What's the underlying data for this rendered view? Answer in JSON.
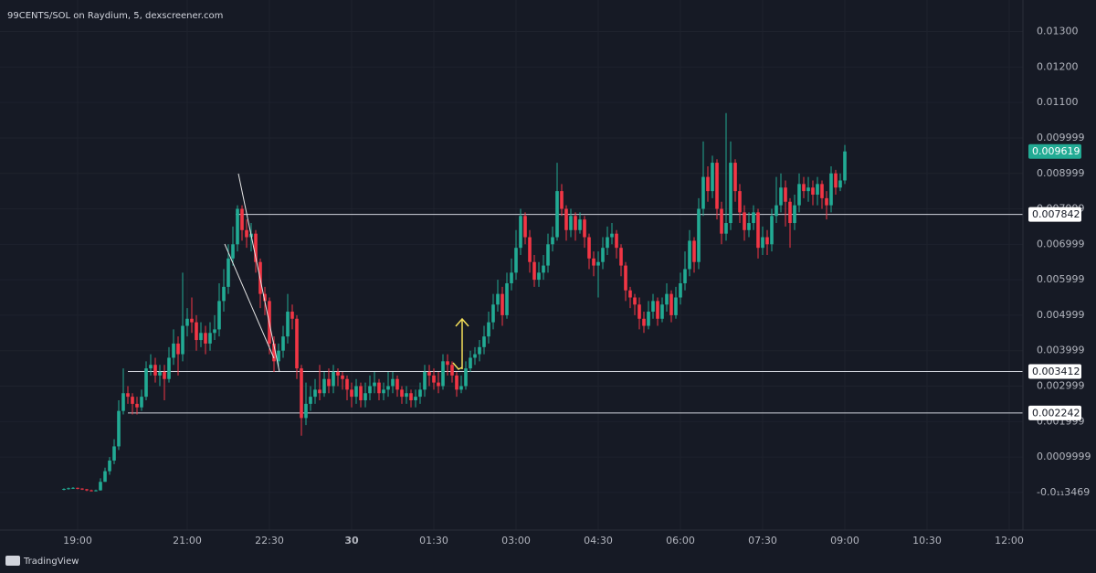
{
  "chart_data": {
    "type": "candlestick",
    "title": "99CENTS/SOL on Raydium, 5, dexscreener.com",
    "up_color": "#22ab94",
    "down_color": "#f23645",
    "grid": true,
    "xlim": [
      -85,
      1035
    ],
    "xticks": [
      {
        "value": 0,
        "label": "19:00"
      },
      {
        "value": 120,
        "label": "21:00"
      },
      {
        "value": 210,
        "label": "22:30"
      },
      {
        "value": 300,
        "label": "30"
      },
      {
        "value": 390,
        "label": "01:30"
      },
      {
        "value": 480,
        "label": "03:00"
      },
      {
        "value": 570,
        "label": "04:30"
      },
      {
        "value": 660,
        "label": "06:00"
      },
      {
        "value": 750,
        "label": "07:30"
      },
      {
        "value": 840,
        "label": "09:00"
      },
      {
        "value": 930,
        "label": "10:30"
      },
      {
        "value": 1020,
        "label": "12:00"
      }
    ],
    "ylim": [
      -0.00106,
      0.01389
    ],
    "yticks": [
      {
        "value": 0.013,
        "label": "0.01300"
      },
      {
        "value": 0.012,
        "label": "0.01200"
      },
      {
        "value": 0.011,
        "label": "0.01100"
      },
      0.009999,
      0.008999,
      0.007999,
      0.006999,
      0.005999,
      0.004999,
      0.003999,
      0.002999,
      0.001999,
      0.0009999,
      {
        "value": -3.469e-13,
        "label": "-0.0₁₁3469"
      }
    ],
    "price_lines": [
      0.007842,
      0.003412,
      0.002242
    ],
    "x": [
      -15,
      -10,
      -5,
      0,
      5,
      10,
      15,
      20,
      25,
      30,
      35,
      40,
      45,
      50,
      55,
      60,
      65,
      70,
      75,
      80,
      85,
      90,
      95,
      100,
      105,
      110,
      115,
      120,
      125,
      130,
      135,
      140,
      145,
      150,
      155,
      160,
      165,
      170,
      175,
      180,
      185,
      190,
      195,
      200,
      205,
      210,
      215,
      220,
      225,
      230,
      235,
      240,
      245,
      250,
      255,
      260,
      265,
      270,
      275,
      280,
      285,
      290,
      295,
      300,
      305,
      310,
      315,
      320,
      325,
      330,
      335,
      340,
      345,
      350,
      355,
      360,
      365,
      370,
      375,
      380,
      385,
      390,
      395,
      400,
      405,
      410,
      415,
      420,
      425,
      430,
      435,
      440,
      445,
      450,
      455,
      460,
      465,
      470,
      475,
      480,
      485,
      490,
      495,
      500,
      505,
      510,
      515,
      520,
      525,
      530,
      535,
      540,
      545,
      550,
      555,
      560,
      565,
      570,
      575,
      580,
      585,
      590,
      595,
      600,
      605,
      610,
      615,
      620,
      625,
      630,
      635,
      640,
      645,
      650,
      655,
      660,
      665,
      670,
      675,
      680,
      685,
      690,
      695,
      700,
      705,
      710,
      715,
      720,
      725,
      730,
      735,
      740,
      745,
      750,
      755,
      760,
      765,
      770,
      775,
      780,
      785,
      790,
      795,
      800,
      805,
      810,
      815,
      820,
      825,
      830,
      835,
      840
    ],
    "open": [
      8e-05,
      0.0001,
      0.00012,
      0.00013,
      0.00011,
      9e-05,
      6e-05,
      5e-05,
      6e-05,
      0.0003,
      0.0006,
      0.0009,
      0.0013,
      0.0023,
      0.0028,
      0.0027,
      0.0025,
      0.0024,
      0.0027,
      0.0035,
      0.0036,
      0.0033,
      0.0034,
      0.0032,
      0.0038,
      0.0042,
      0.0039,
      0.0047,
      0.0049,
      0.0048,
      0.0043,
      0.0045,
      0.0042,
      0.0045,
      0.0046,
      0.0054,
      0.0058,
      0.0066,
      0.007,
      0.008,
      0.0074,
      0.0072,
      0.0073,
      0.0065,
      0.0056,
      0.0054,
      0.0042,
      0.0037,
      0.004,
      0.0044,
      0.0051,
      0.0049,
      0.0035,
      0.0021,
      0.0025,
      0.0027,
      0.0029,
      0.0028,
      0.0032,
      0.003,
      0.0034,
      0.0033,
      0.0032,
      0.0029,
      0.0027,
      0.003,
      0.0026,
      0.0028,
      0.003,
      0.0031,
      0.0028,
      0.0029,
      0.003,
      0.0032,
      0.0029,
      0.0027,
      0.0028,
      0.0026,
      0.0027,
      0.0029,
      0.0034,
      0.0033,
      0.0031,
      0.003,
      0.0037,
      0.0036,
      0.0033,
      0.0029,
      0.003,
      0.0035,
      0.0038,
      0.0039,
      0.0041,
      0.0044,
      0.0048,
      0.0053,
      0.0056,
      0.005,
      0.0059,
      0.0062,
      0.0069,
      0.0078,
      0.0072,
      0.0065,
      0.006,
      0.0062,
      0.0064,
      0.007,
      0.0072,
      0.0085,
      0.008,
      0.0074,
      0.0078,
      0.0074,
      0.0077,
      0.0072,
      0.0066,
      0.0064,
      0.0065,
      0.0069,
      0.0072,
      0.0073,
      0.0069,
      0.0064,
      0.0057,
      0.0055,
      0.0053,
      0.0049,
      0.0047,
      0.0051,
      0.0054,
      0.0049,
      0.0053,
      0.0056,
      0.005,
      0.0055,
      0.0059,
      0.0063,
      0.0071,
      0.0065,
      0.008,
      0.0089,
      0.0085,
      0.0093,
      0.008,
      0.0073,
      0.0076,
      0.0093,
      0.0085,
      0.0079,
      0.0074,
      0.0076,
      0.0079,
      0.0069,
      0.0072,
      0.007,
      0.0078,
      0.0081,
      0.0086,
      0.0082,
      0.0076,
      0.0081,
      0.0087,
      0.0085,
      0.0086,
      0.0084,
      0.0087,
      0.0083,
      0.0081,
      0.009,
      0.0086,
      0.0088
    ],
    "high": [
      0.00012,
      0.00014,
      0.00015,
      0.00014,
      0.00012,
      0.0001,
      8e-05,
      8e-05,
      0.0004,
      0.0007,
      0.001,
      0.0015,
      0.0026,
      0.0035,
      0.003,
      0.0028,
      0.0027,
      0.0029,
      0.0037,
      0.0039,
      0.0038,
      0.0036,
      0.0036,
      0.0041,
      0.0046,
      0.0044,
      0.0062,
      0.0052,
      0.0055,
      0.005,
      0.0048,
      0.0047,
      0.0048,
      0.005,
      0.0059,
      0.0063,
      0.007,
      0.0075,
      0.0081,
      0.0081,
      0.0077,
      0.0076,
      0.0074,
      0.0066,
      0.0058,
      0.0055,
      0.0044,
      0.0042,
      0.0047,
      0.0056,
      0.0053,
      0.005,
      0.0036,
      0.0031,
      0.003,
      0.0032,
      0.0036,
      0.0034,
      0.0035,
      0.0036,
      0.0035,
      0.0034,
      0.0033,
      0.0031,
      0.0032,
      0.0031,
      0.0031,
      0.0033,
      0.0034,
      0.0032,
      0.0031,
      0.0034,
      0.0034,
      0.0033,
      0.003,
      0.003,
      0.0029,
      0.0029,
      0.0031,
      0.0036,
      0.0036,
      0.0035,
      0.0034,
      0.0039,
      0.0039,
      0.0037,
      0.0034,
      0.0033,
      0.0037,
      0.004,
      0.0041,
      0.0043,
      0.0047,
      0.0051,
      0.0056,
      0.006,
      0.0058,
      0.0062,
      0.0066,
      0.0074,
      0.008,
      0.0079,
      0.0074,
      0.0067,
      0.0065,
      0.0067,
      0.0073,
      0.0075,
      0.0093,
      0.0087,
      0.0081,
      0.008,
      0.0079,
      0.0079,
      0.0078,
      0.0073,
      0.0068,
      0.0068,
      0.0072,
      0.0075,
      0.0076,
      0.0074,
      0.007,
      0.0065,
      0.0058,
      0.0056,
      0.0055,
      0.0051,
      0.0054,
      0.0056,
      0.0055,
      0.0055,
      0.0059,
      0.0057,
      0.0058,
      0.0062,
      0.0068,
      0.0074,
      0.0072,
      0.0083,
      0.0099,
      0.0092,
      0.0095,
      0.0094,
      0.0082,
      0.0107,
      0.0099,
      0.0094,
      0.0087,
      0.0081,
      0.0079,
      0.0081,
      0.008,
      0.0075,
      0.0074,
      0.008,
      0.0089,
      0.009,
      0.0088,
      0.0083,
      0.0084,
      0.009,
      0.0089,
      0.0089,
      0.0088,
      0.0089,
      0.0088,
      0.0085,
      0.0092,
      0.0091,
      0.009,
      0.0098
    ],
    "low": [
      6e-05,
      8e-05,
      0.0001,
      9e-05,
      7e-05,
      4e-05,
      3e-05,
      3e-05,
      5e-05,
      0.0003,
      0.0005,
      0.0008,
      0.0012,
      0.0022,
      0.0025,
      0.0022,
      0.0022,
      0.0023,
      0.0026,
      0.0033,
      0.0031,
      0.003,
      0.0026,
      0.0031,
      0.0036,
      0.0033,
      0.0037,
      0.0044,
      0.0045,
      0.004,
      0.0041,
      0.0039,
      0.004,
      0.0043,
      0.0044,
      0.0051,
      0.0056,
      0.0064,
      0.0068,
      0.0071,
      0.0069,
      0.0068,
      0.0062,
      0.0052,
      0.005,
      0.0039,
      0.0034,
      0.0035,
      0.0038,
      0.0042,
      0.0046,
      0.0032,
      0.0016,
      0.0019,
      0.0023,
      0.0025,
      0.0026,
      0.0027,
      0.0028,
      0.0028,
      0.003,
      0.0029,
      0.0026,
      0.0024,
      0.0025,
      0.0024,
      0.0024,
      0.0026,
      0.0028,
      0.0026,
      0.0026,
      0.0027,
      0.0028,
      0.0027,
      0.0025,
      0.0025,
      0.0024,
      0.0024,
      0.0025,
      0.0027,
      0.003,
      0.0029,
      0.0028,
      0.0029,
      0.0033,
      0.0031,
      0.0027,
      0.0028,
      0.0029,
      0.0034,
      0.0036,
      0.0037,
      0.0039,
      0.0042,
      0.0046,
      0.0051,
      0.0047,
      0.0049,
      0.0057,
      0.006,
      0.0067,
      0.007,
      0.0062,
      0.0058,
      0.0058,
      0.006,
      0.0062,
      0.0068,
      0.0071,
      0.0078,
      0.0071,
      0.0072,
      0.0071,
      0.0073,
      0.0069,
      0.0063,
      0.0061,
      0.0055,
      0.0063,
      0.0067,
      0.007,
      0.0066,
      0.0061,
      0.0054,
      0.0052,
      0.005,
      0.0046,
      0.0045,
      0.0046,
      0.0049,
      0.0047,
      0.0048,
      0.0051,
      0.0048,
      0.0049,
      0.0053,
      0.0057,
      0.0061,
      0.0062,
      0.0063,
      0.0078,
      0.0082,
      0.0083,
      0.0077,
      0.007,
      0.0071,
      0.0074,
      0.0082,
      0.0076,
      0.0071,
      0.0072,
      0.0074,
      0.0066,
      0.0067,
      0.0067,
      0.0068,
      0.0076,
      0.0079,
      0.0075,
      0.0069,
      0.0074,
      0.0079,
      0.0083,
      0.0082,
      0.0081,
      0.0081,
      0.008,
      0.0077,
      0.0079,
      0.0084,
      0.0085,
      0.0087
    ],
    "close": [
      0.0001,
      0.00012,
      0.00013,
      0.00011,
      9e-05,
      6e-05,
      5e-05,
      6e-05,
      0.0003,
      0.0006,
      0.0009,
      0.0013,
      0.0023,
      0.0028,
      0.0027,
      0.0025,
      0.0024,
      0.0027,
      0.0035,
      0.0036,
      0.0033,
      0.0034,
      0.0032,
      0.0038,
      0.0042,
      0.0039,
      0.0047,
      0.0049,
      0.0048,
      0.0043,
      0.0045,
      0.0042,
      0.0045,
      0.0046,
      0.0054,
      0.0058,
      0.0066,
      0.007,
      0.008,
      0.0074,
      0.0072,
      0.0073,
      0.0065,
      0.0056,
      0.0054,
      0.0042,
      0.0037,
      0.004,
      0.0044,
      0.0051,
      0.0049,
      0.0035,
      0.0021,
      0.0025,
      0.0027,
      0.0029,
      0.0028,
      0.0032,
      0.003,
      0.0034,
      0.0033,
      0.0032,
      0.0029,
      0.0027,
      0.003,
      0.0026,
      0.0028,
      0.003,
      0.0031,
      0.0028,
      0.0029,
      0.003,
      0.0032,
      0.0029,
      0.0027,
      0.0028,
      0.0026,
      0.0027,
      0.0029,
      0.0034,
      0.0033,
      0.0031,
      0.003,
      0.0037,
      0.0036,
      0.0033,
      0.0029,
      0.003,
      0.0035,
      0.0038,
      0.0039,
      0.0041,
      0.0044,
      0.0048,
      0.0053,
      0.0056,
      0.005,
      0.0059,
      0.0062,
      0.0069,
      0.0078,
      0.0072,
      0.0065,
      0.006,
      0.0062,
      0.0064,
      0.007,
      0.0072,
      0.0085,
      0.008,
      0.0074,
      0.0078,
      0.0074,
      0.0077,
      0.0072,
      0.0066,
      0.0064,
      0.0065,
      0.0069,
      0.0072,
      0.0073,
      0.0069,
      0.0064,
      0.0057,
      0.0055,
      0.0053,
      0.0049,
      0.0047,
      0.0051,
      0.0054,
      0.0049,
      0.0053,
      0.0056,
      0.005,
      0.0055,
      0.0059,
      0.0063,
      0.0071,
      0.0065,
      0.008,
      0.0089,
      0.0085,
      0.0093,
      0.008,
      0.0073,
      0.0076,
      0.0093,
      0.0085,
      0.0079,
      0.0074,
      0.0076,
      0.0079,
      0.0069,
      0.0072,
      0.007,
      0.0078,
      0.0081,
      0.0086,
      0.0082,
      0.0076,
      0.0081,
      0.0087,
      0.0085,
      0.0086,
      0.0084,
      0.0087,
      0.0083,
      0.0081,
      0.009,
      0.0086,
      0.0088,
      0.009619
    ]
  },
  "branding": "TradingView"
}
